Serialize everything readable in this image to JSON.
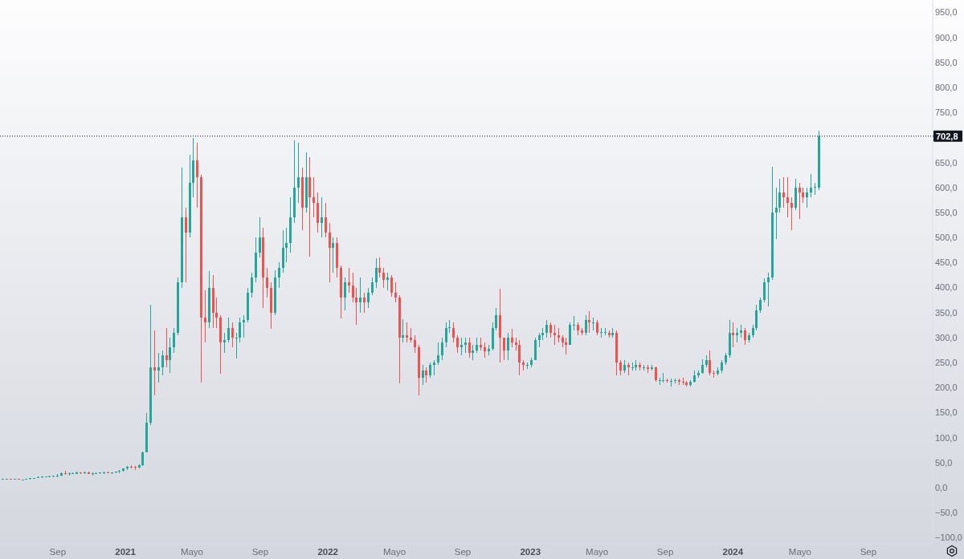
{
  "chart_data": {
    "type": "candlestick",
    "x": [
      "2020-05-25",
      "2020-06-01",
      "2020-06-08",
      "2020-06-15",
      "2020-06-22",
      "2020-06-29",
      "2020-07-06",
      "2020-07-13",
      "2020-07-20",
      "2020-07-27",
      "2020-08-03",
      "2020-08-10",
      "2020-08-17",
      "2020-08-24",
      "2020-08-31",
      "2020-09-07",
      "2020-09-14",
      "2020-09-21",
      "2020-09-28",
      "2020-10-05",
      "2020-10-12",
      "2020-10-19",
      "2020-10-26",
      "2020-11-02",
      "2020-11-09",
      "2020-11-16",
      "2020-11-23",
      "2020-11-30",
      "2020-12-07",
      "2020-12-14",
      "2020-12-21",
      "2020-12-28",
      "2021-01-04",
      "2021-01-11",
      "2021-01-18",
      "2021-01-25",
      "2021-02-01",
      "2021-02-08",
      "2021-02-15",
      "2021-02-22",
      "2021-03-01",
      "2021-03-08",
      "2021-03-15",
      "2021-03-22",
      "2021-03-29",
      "2021-04-05",
      "2021-04-12",
      "2021-04-19",
      "2021-04-26",
      "2021-05-03",
      "2021-05-10",
      "2021-05-17",
      "2021-05-24",
      "2021-05-31",
      "2021-06-07",
      "2021-06-14",
      "2021-06-21",
      "2021-06-28",
      "2021-07-05",
      "2021-07-12",
      "2021-07-19",
      "2021-07-26",
      "2021-08-02",
      "2021-08-09",
      "2021-08-16",
      "2021-08-23",
      "2021-08-30",
      "2021-09-06",
      "2021-09-13",
      "2021-09-20",
      "2021-09-27",
      "2021-10-04",
      "2021-10-11",
      "2021-10-18",
      "2021-10-25",
      "2021-11-01",
      "2021-11-08",
      "2021-11-15",
      "2021-11-22",
      "2021-11-29",
      "2021-12-06",
      "2021-12-13",
      "2021-12-20",
      "2021-12-27",
      "2022-01-03",
      "2022-01-10",
      "2022-01-17",
      "2022-01-24",
      "2022-01-31",
      "2022-02-07",
      "2022-02-14",
      "2022-02-21",
      "2022-02-28",
      "2022-03-07",
      "2022-03-14",
      "2022-03-21",
      "2022-03-28",
      "2022-04-04",
      "2022-04-11",
      "2022-04-18",
      "2022-04-25",
      "2022-05-02",
      "2022-05-09",
      "2022-05-16",
      "2022-05-23",
      "2022-05-30",
      "2022-06-06",
      "2022-06-13",
      "2022-06-20",
      "2022-06-27",
      "2022-07-04",
      "2022-07-11",
      "2022-07-18",
      "2022-07-25",
      "2022-08-01",
      "2022-08-08",
      "2022-08-15",
      "2022-08-22",
      "2022-08-29",
      "2022-09-05",
      "2022-09-12",
      "2022-09-19",
      "2022-09-26",
      "2022-10-03",
      "2022-10-10",
      "2022-10-17",
      "2022-10-24",
      "2022-10-31",
      "2022-11-07",
      "2022-11-14",
      "2022-11-21",
      "2022-11-28",
      "2022-12-05",
      "2022-12-12",
      "2022-12-19",
      "2022-12-26",
      "2023-01-02",
      "2023-01-09",
      "2023-01-16",
      "2023-01-23",
      "2023-01-30",
      "2023-02-06",
      "2023-02-13",
      "2023-02-20",
      "2023-02-27",
      "2023-03-06",
      "2023-03-13",
      "2023-03-20",
      "2023-03-27",
      "2023-04-03",
      "2023-04-10",
      "2023-04-17",
      "2023-04-24",
      "2023-05-01",
      "2023-05-08",
      "2023-05-15",
      "2023-05-22",
      "2023-05-29",
      "2023-06-05",
      "2023-06-12",
      "2023-06-19",
      "2023-06-26",
      "2023-07-03",
      "2023-07-10",
      "2023-07-17",
      "2023-07-24",
      "2023-07-31",
      "2023-08-07",
      "2023-08-14",
      "2023-08-21",
      "2023-08-28",
      "2023-09-04",
      "2023-09-11",
      "2023-09-18",
      "2023-09-25",
      "2023-10-02",
      "2023-10-09",
      "2023-10-16",
      "2023-10-23",
      "2023-10-30",
      "2023-11-06",
      "2023-11-13",
      "2023-11-20",
      "2023-11-27",
      "2023-12-04",
      "2023-12-11",
      "2023-12-18",
      "2023-12-25",
      "2024-01-01",
      "2024-01-08",
      "2024-01-15",
      "2024-01-22",
      "2024-01-29",
      "2024-02-05",
      "2024-02-12",
      "2024-02-19",
      "2024-02-26",
      "2024-03-04",
      "2024-03-11",
      "2024-03-18",
      "2024-03-25",
      "2024-04-01",
      "2024-04-08",
      "2024-04-15",
      "2024-04-22",
      "2024-04-29",
      "2024-05-06",
      "2024-05-13",
      "2024-05-20",
      "2024-05-27",
      "2024-06-03"
    ],
    "ohlc": [
      [
        17,
        18,
        17,
        17
      ],
      [
        17,
        18,
        17,
        18
      ],
      [
        18,
        18,
        17,
        17
      ],
      [
        17,
        18,
        16,
        17
      ],
      [
        17,
        17,
        16,
        16
      ],
      [
        16,
        16,
        15,
        16
      ],
      [
        16,
        18,
        16,
        18
      ],
      [
        18,
        19,
        17,
        18
      ],
      [
        18,
        20,
        18,
        20
      ],
      [
        20,
        22,
        19,
        21
      ],
      [
        21,
        22,
        20,
        22
      ],
      [
        22,
        23,
        21,
        22
      ],
      [
        22,
        24,
        21,
        23
      ],
      [
        23,
        24,
        21,
        23
      ],
      [
        23,
        27,
        21,
        25
      ],
      [
        25,
        30,
        23,
        29
      ],
      [
        29,
        34,
        26,
        28
      ],
      [
        28,
        30,
        24,
        28
      ],
      [
        28,
        30,
        27,
        28
      ],
      [
        28,
        32,
        27,
        30
      ],
      [
        30,
        31,
        28,
        29
      ],
      [
        29,
        32,
        28,
        31
      ],
      [
        31,
        32,
        27,
        28
      ],
      [
        28,
        30,
        25,
        29
      ],
      [
        29,
        30,
        27,
        29
      ],
      [
        29,
        31,
        28,
        30
      ],
      [
        30,
        33,
        27,
        31
      ],
      [
        31,
        32,
        29,
        30
      ],
      [
        30,
        31,
        28,
        30
      ],
      [
        30,
        33,
        29,
        32
      ],
      [
        32,
        35,
        29,
        34
      ],
      [
        34,
        39,
        33,
        38
      ],
      [
        38,
        44,
        36,
        42
      ],
      [
        42,
        45,
        38,
        41
      ],
      [
        41,
        43,
        35,
        40
      ],
      [
        40,
        47,
        38,
        45
      ],
      [
        45,
        72,
        44,
        70
      ],
      [
        70,
        150,
        70,
        130
      ],
      [
        130,
        365,
        125,
        240
      ],
      [
        240,
        315,
        185,
        235
      ],
      [
        235,
        270,
        210,
        240
      ],
      [
        240,
        275,
        225,
        265
      ],
      [
        265,
        320,
        240,
        255
      ],
      [
        255,
        300,
        230,
        280
      ],
      [
        280,
        320,
        270,
        310
      ],
      [
        310,
        420,
        305,
        410
      ],
      [
        410,
        640,
        400,
        540
      ],
      [
        540,
        560,
        410,
        510
      ],
      [
        510,
        665,
        500,
        610
      ],
      [
        610,
        700,
        580,
        655
      ],
      [
        655,
        690,
        560,
        620
      ],
      [
        620,
        625,
        210,
        340
      ],
      [
        340,
        395,
        290,
        330
      ],
      [
        330,
        433,
        320,
        400
      ],
      [
        400,
        425,
        320,
        350
      ],
      [
        350,
        380,
        320,
        340
      ],
      [
        340,
        345,
        228,
        290
      ],
      [
        290,
        310,
        270,
        295
      ],
      [
        295,
        340,
        290,
        320
      ],
      [
        320,
        330,
        280,
        300
      ],
      [
        300,
        310,
        258,
        300
      ],
      [
        300,
        340,
        290,
        330
      ],
      [
        330,
        345,
        300,
        335
      ],
      [
        335,
        400,
        330,
        390
      ],
      [
        390,
        430,
        380,
        420
      ],
      [
        420,
        500,
        410,
        470
      ],
      [
        470,
        540,
        460,
        500
      ],
      [
        500,
        520,
        360,
        420
      ],
      [
        420,
        440,
        380,
        400
      ],
      [
        400,
        410,
        318,
        350
      ],
      [
        350,
        435,
        345,
        420
      ],
      [
        420,
        450,
        400,
        440
      ],
      [
        440,
        515,
        430,
        480
      ],
      [
        480,
        520,
        450,
        490
      ],
      [
        490,
        580,
        470,
        540
      ],
      [
        540,
        694,
        530,
        600
      ],
      [
        600,
        690,
        570,
        620
      ],
      [
        620,
        640,
        515,
        560
      ],
      [
        560,
        670,
        550,
        620
      ],
      [
        620,
        660,
        462,
        580
      ],
      [
        580,
        620,
        540,
        570
      ],
      [
        570,
        590,
        510,
        530
      ],
      [
        530,
        580,
        500,
        540
      ],
      [
        540,
        570,
        500,
        510
      ],
      [
        510,
        530,
        410,
        480
      ],
      [
        480,
        500,
        430,
        490
      ],
      [
        490,
        500,
        420,
        440
      ],
      [
        440,
        445,
        339,
        380
      ],
      [
        380,
        420,
        355,
        410
      ],
      [
        410,
        440,
        390,
        405
      ],
      [
        405,
        430,
        370,
        380
      ],
      [
        380,
        400,
        326,
        370
      ],
      [
        370,
        420,
        350,
        380
      ],
      [
        380,
        390,
        350,
        370
      ],
      [
        370,
        400,
        360,
        390
      ],
      [
        390,
        420,
        385,
        410
      ],
      [
        410,
        458,
        400,
        440
      ],
      [
        440,
        460,
        420,
        430
      ],
      [
        430,
        440,
        400,
        415
      ],
      [
        415,
        430,
        395,
        420
      ],
      [
        420,
        425,
        381,
        390
      ],
      [
        390,
        410,
        370,
        380
      ],
      [
        380,
        385,
        209,
        300
      ],
      [
        300,
        337,
        290,
        305
      ],
      [
        305,
        330,
        290,
        300
      ],
      [
        300,
        320,
        290,
        295
      ],
      [
        295,
        305,
        270,
        280
      ],
      [
        280,
        285,
        185,
        220
      ],
      [
        220,
        245,
        205,
        235
      ],
      [
        235,
        240,
        210,
        225
      ],
      [
        225,
        250,
        220,
        245
      ],
      [
        245,
        255,
        225,
        250
      ],
      [
        250,
        290,
        245,
        265
      ],
      [
        265,
        300,
        255,
        290
      ],
      [
        290,
        330,
        280,
        320
      ],
      [
        320,
        336,
        310,
        320
      ],
      [
        320,
        330,
        290,
        300
      ],
      [
        300,
        305,
        270,
        280
      ],
      [
        280,
        300,
        265,
        285
      ],
      [
        285,
        300,
        270,
        290
      ],
      [
        290,
        300,
        260,
        270
      ],
      [
        270,
        285,
        255,
        275
      ],
      [
        275,
        300,
        270,
        285
      ],
      [
        285,
        300,
        275,
        280
      ],
      [
        280,
        290,
        260,
        272
      ],
      [
        272,
        285,
        265,
        278
      ],
      [
        278,
        330,
        275,
        320
      ],
      [
        320,
        360,
        315,
        345
      ],
      [
        345,
        398,
        250,
        300
      ],
      [
        300,
        300,
        255,
        275
      ],
      [
        275,
        310,
        255,
        300
      ],
      [
        300,
        318,
        280,
        290
      ],
      [
        290,
        300,
        275,
        285
      ],
      [
        285,
        295,
        224,
        250
      ],
      [
        250,
        255,
        235,
        245
      ],
      [
        245,
        250,
        237,
        245
      ],
      [
        245,
        260,
        240,
        255
      ],
      [
        255,
        300,
        255,
        295
      ],
      [
        295,
        310,
        280,
        305
      ],
      [
        305,
        320,
        295,
        310
      ],
      [
        310,
        336,
        300,
        325
      ],
      [
        325,
        330,
        300,
        310
      ],
      [
        310,
        325,
        285,
        305
      ],
      [
        305,
        320,
        290,
        300
      ],
      [
        300,
        305,
        280,
        290
      ],
      [
        290,
        300,
        266,
        285
      ],
      [
        285,
        330,
        285,
        325
      ],
      [
        325,
        344,
        315,
        325
      ],
      [
        325,
        330,
        305,
        315
      ],
      [
        315,
        320,
        305,
        310
      ],
      [
        310,
        345,
        305,
        335
      ],
      [
        335,
        353,
        310,
        330
      ],
      [
        330,
        340,
        315,
        330
      ],
      [
        330,
        335,
        305,
        310
      ],
      [
        310,
        320,
        300,
        310
      ],
      [
        310,
        320,
        305,
        310
      ],
      [
        310,
        315,
        300,
        305
      ],
      [
        305,
        320,
        300,
        310
      ],
      [
        310,
        315,
        224,
        250
      ],
      [
        250,
        255,
        225,
        235
      ],
      [
        235,
        255,
        230,
        245
      ],
      [
        245,
        250,
        225,
        240
      ],
      [
        240,
        250,
        235,
        240
      ],
      [
        240,
        255,
        235,
        245
      ],
      [
        245,
        250,
        235,
        240
      ],
      [
        240,
        245,
        235,
        240
      ],
      [
        240,
        245,
        230,
        238
      ],
      [
        238,
        245,
        235,
        240
      ],
      [
        240,
        242,
        212,
        215
      ],
      [
        215,
        220,
        205,
        215
      ],
      [
        215,
        230,
        210,
        215
      ],
      [
        215,
        218,
        210,
        213
      ],
      [
        213,
        218,
        203,
        213
      ],
      [
        213,
        218,
        208,
        215
      ],
      [
        215,
        218,
        205,
        212
      ],
      [
        212,
        220,
        205,
        210
      ],
      [
        210,
        213,
        202,
        205
      ],
      [
        205,
        215,
        203,
        212
      ],
      [
        212,
        235,
        210,
        225
      ],
      [
        225,
        235,
        220,
        230
      ],
      [
        230,
        257,
        228,
        245
      ],
      [
        245,
        265,
        240,
        255
      ],
      [
        255,
        274,
        224,
        230
      ],
      [
        230,
        235,
        220,
        228
      ],
      [
        228,
        240,
        225,
        235
      ],
      [
        235,
        255,
        230,
        250
      ],
      [
        250,
        270,
        245,
        265
      ],
      [
        265,
        336,
        260,
        310
      ],
      [
        310,
        330,
        280,
        305
      ],
      [
        305,
        320,
        290,
        310
      ],
      [
        310,
        325,
        300,
        315
      ],
      [
        315,
        320,
        285,
        295
      ],
      [
        295,
        310,
        290,
        305
      ],
      [
        305,
        325,
        300,
        320
      ],
      [
        320,
        365,
        315,
        355
      ],
      [
        355,
        380,
        350,
        375
      ],
      [
        375,
        418,
        370,
        410
      ],
      [
        410,
        430,
        362,
        420
      ],
      [
        420,
        641,
        415,
        550
      ],
      [
        550,
        600,
        498,
        560
      ],
      [
        560,
        617,
        550,
        590
      ],
      [
        590,
        620,
        560,
        580
      ],
      [
        580,
        620,
        540,
        570
      ],
      [
        570,
        580,
        515,
        560
      ],
      [
        560,
        617,
        555,
        600
      ],
      [
        600,
        610,
        537,
        590
      ],
      [
        590,
        600,
        570,
        580
      ],
      [
        580,
        600,
        560,
        590
      ],
      [
        590,
        627,
        580,
        600
      ],
      [
        600,
        610,
        585,
        600
      ],
      [
        600,
        713,
        595,
        702.8
      ]
    ],
    "colors": [
      "#26a69a",
      "#26a69a",
      "#ef5350",
      "#26a69a",
      "#ef5350",
      "#26a69a",
      "#26a69a",
      "#26a69a",
      "#26a69a",
      "#26a69a",
      "#26a69a",
      "#26a69a",
      "#26a69a",
      "#26a69a",
      "#26a69a",
      "#26a69a",
      "#ef5350",
      "#26a69a",
      "#26a69a",
      "#26a69a",
      "#ef5350",
      "#26a69a",
      "#ef5350",
      "#26a69a",
      "#26a69a",
      "#26a69a",
      "#26a69a",
      "#ef5350",
      "#26a69a",
      "#26a69a",
      "#26a69a",
      "#26a69a",
      "#26a69a",
      "#ef5350",
      "#ef5350",
      "#26a69a",
      "#26a69a",
      "#26a69a",
      "#26a69a",
      "#ef5350",
      "#26a69a",
      "#26a69a",
      "#ef5350",
      "#26a69a",
      "#26a69a",
      "#26a69a",
      "#26a69a",
      "#ef5350",
      "#26a69a",
      "#26a69a",
      "#ef5350",
      "#ef5350",
      "#ef5350",
      "#26a69a",
      "#ef5350",
      "#ef5350",
      "#ef5350",
      "#26a69a",
      "#26a69a",
      "#ef5350",
      "#26a69a",
      "#26a69a",
      "#26a69a",
      "#26a69a",
      "#26a69a",
      "#26a69a",
      "#26a69a",
      "#ef5350",
      "#ef5350",
      "#ef5350",
      "#26a69a",
      "#26a69a",
      "#26a69a",
      "#26a69a",
      "#26a69a",
      "#26a69a",
      "#26a69a",
      "#ef5350",
      "#26a69a",
      "#ef5350",
      "#ef5350",
      "#ef5350",
      "#26a69a",
      "#ef5350",
      "#ef5350",
      "#26a69a",
      "#ef5350",
      "#ef5350",
      "#26a69a",
      "#ef5350",
      "#ef5350",
      "#ef5350",
      "#26a69a",
      "#ef5350",
      "#26a69a",
      "#26a69a",
      "#26a69a",
      "#ef5350",
      "#ef5350",
      "#26a69a",
      "#ef5350",
      "#ef5350",
      "#ef5350",
      "#26a69a",
      "#ef5350",
      "#ef5350",
      "#ef5350",
      "#ef5350",
      "#26a69a",
      "#ef5350",
      "#26a69a",
      "#26a69a",
      "#26a69a",
      "#26a69a",
      "#26a69a",
      "#26a69a",
      "#ef5350",
      "#ef5350",
      "#26a69a",
      "#26a69a",
      "#ef5350",
      "#26a69a",
      "#26a69a",
      "#ef5350",
      "#ef5350",
      "#26a69a",
      "#26a69a",
      "#26a69a",
      "#ef5350",
      "#ef5350",
      "#26a69a",
      "#ef5350",
      "#ef5350",
      "#ef5350",
      "#ef5350",
      "#26a69a",
      "#26a69a",
      "#26a69a",
      "#26a69a",
      "#26a69a",
      "#26a69a",
      "#ef5350",
      "#ef5350",
      "#ef5350",
      "#ef5350",
      "#ef5350",
      "#26a69a",
      "#26a69a",
      "#ef5350",
      "#ef5350",
      "#26a69a",
      "#ef5350",
      "#26a69a",
      "#ef5350",
      "#26a69a",
      "#26a69a",
      "#ef5350",
      "#26a69a",
      "#ef5350",
      "#ef5350",
      "#26a69a",
      "#ef5350",
      "#26a69a",
      "#26a69a",
      "#ef5350",
      "#26a69a",
      "#ef5350",
      "#26a69a",
      "#ef5350",
      "#26a69a",
      "#26a69a",
      "#ef5350",
      "#26a69a",
      "#26a69a",
      "#ef5350",
      "#ef5350",
      "#ef5350",
      "#26a69a",
      "#26a69a",
      "#26a69a",
      "#26a69a",
      "#26a69a",
      "#ef5350",
      "#ef5350",
      "#26a69a",
      "#26a69a",
      "#26a69a",
      "#26a69a",
      "#ef5350",
      "#26a69a",
      "#26a69a",
      "#ef5350",
      "#26a69a",
      "#26a69a",
      "#26a69a",
      "#26a69a",
      "#26a69a",
      "#26a69a",
      "#26a69a",
      "#26a69a",
      "#26a69a",
      "#ef5350",
      "#ef5350",
      "#ef5350",
      "#26a69a",
      "#ef5350",
      "#ef5350",
      "#26a69a",
      "#26a69a",
      "#26a69a",
      "#26a69a"
    ],
    "xlim": [
      "2020-05-20",
      "2024-12-26"
    ],
    "xticks": [
      {
        "value": "2020-09-01",
        "label": "Sep"
      },
      {
        "value": "2021-01-01",
        "label": "2021"
      },
      {
        "value": "2021-05-01",
        "label": "Mayo"
      },
      {
        "value": "2021-09-01",
        "label": "Sep"
      },
      {
        "value": "2022-01-01",
        "label": "2022"
      },
      {
        "value": "2022-05-01",
        "label": "Mayo"
      },
      {
        "value": "2022-09-01",
        "label": "Sep"
      },
      {
        "value": "2023-01-01",
        "label": "2023"
      },
      {
        "value": "2023-05-01",
        "label": "Mayo"
      },
      {
        "value": "2023-09-01",
        "label": "Sep"
      },
      {
        "value": "2024-01-01",
        "label": "2024"
      },
      {
        "value": "2024-05-01",
        "label": "Mayo"
      },
      {
        "value": "2024-09-01",
        "label": "Sep"
      }
    ],
    "ylim": [
      -112,
      975
    ],
    "yticks": [
      {
        "value": 950,
        "label": "950,0"
      },
      {
        "value": 900,
        "label": "900,0"
      },
      {
        "value": 850,
        "label": "850,0"
      },
      {
        "value": 800,
        "label": "800,0"
      },
      {
        "value": 750,
        "label": "750,0"
      },
      {
        "value": 650,
        "label": "650,0"
      },
      {
        "value": 600,
        "label": "600,0"
      },
      {
        "value": 550,
        "label": "550,0"
      },
      {
        "value": 500,
        "label": "500,0"
      },
      {
        "value": 450,
        "label": "450,0"
      },
      {
        "value": 400,
        "label": "400,0"
      },
      {
        "value": 350,
        "label": "350,0"
      },
      {
        "value": 300,
        "label": "300,0"
      },
      {
        "value": 250,
        "label": "250,0"
      },
      {
        "value": 200,
        "label": "200,0"
      },
      {
        "value": 150,
        "label": "150,0"
      },
      {
        "value": 100,
        "label": "100,0"
      },
      {
        "value": 50,
        "label": "50,0"
      },
      {
        "value": 0,
        "label": "0,0"
      },
      {
        "value": -50,
        "label": "−50,0"
      },
      {
        "value": -100,
        "label": "−100,0"
      }
    ],
    "ref_lines": [
      {
        "axis": "y",
        "value": 702.8,
        "label": "702,8",
        "line_style": "dotted",
        "color": "#131722"
      }
    ]
  }
}
